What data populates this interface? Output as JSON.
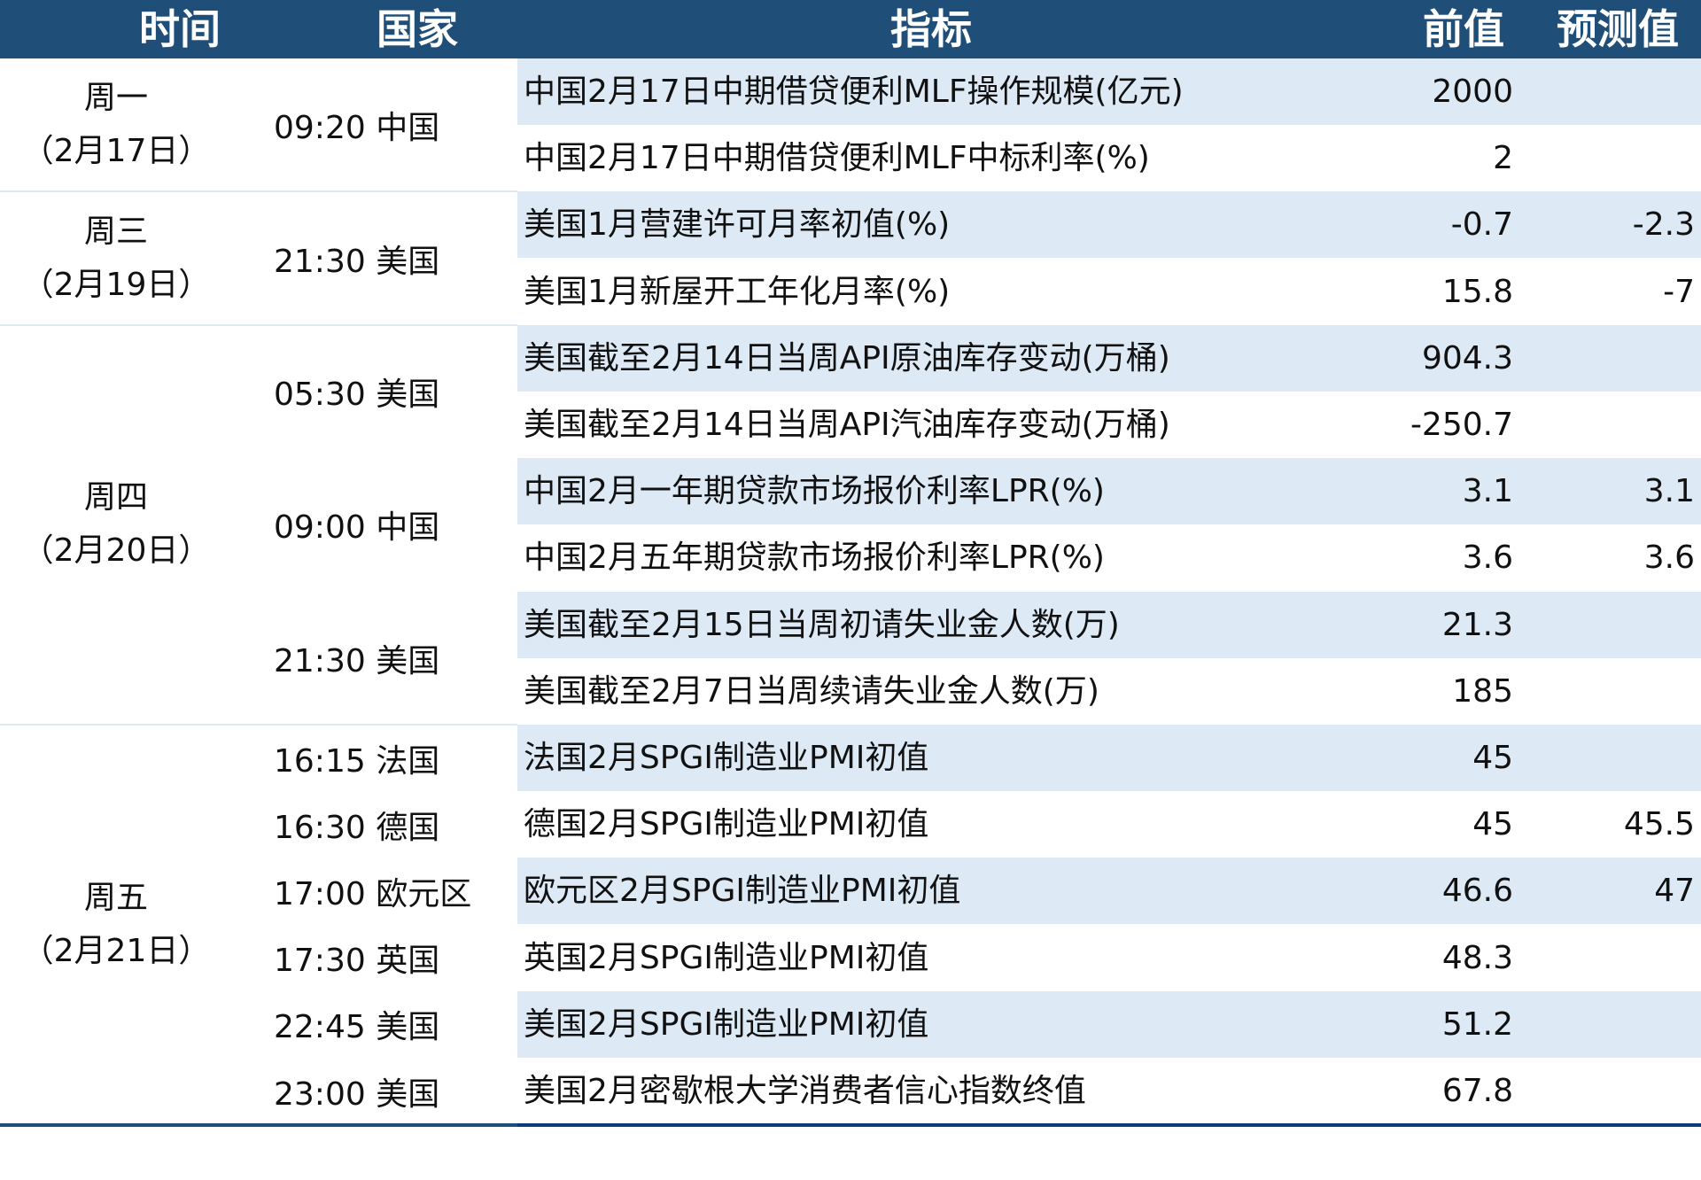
{
  "header": {
    "time": "时间",
    "country": "国家",
    "indicator": "指标",
    "previous": "前值",
    "forecast": "预测值"
  },
  "colors": {
    "header_bg": "#1f4e79",
    "row_shade": "#ddeaf6",
    "bottom_rule": "#0b3a7e"
  },
  "days": [
    {
      "day": "周一",
      "date": "（2月17日）",
      "start": 0,
      "span": 2
    },
    {
      "day": "周三",
      "date": "（2月19日）",
      "start": 2,
      "span": 2
    },
    {
      "day": "周四",
      "date": "（2月20日）",
      "start": 4,
      "span": 6
    },
    {
      "day": "周五",
      "date": "（2月21日）",
      "start": 10,
      "span": 6
    }
  ],
  "times": [
    {
      "label": "09:20 中国",
      "start": 0,
      "span": 2
    },
    {
      "label": "21:30 美国",
      "start": 2,
      "span": 2
    },
    {
      "label": "05:30 美国",
      "start": 4,
      "span": 2
    },
    {
      "label": "09:00 中国",
      "start": 6,
      "span": 2
    },
    {
      "label": "21:30 美国",
      "start": 8,
      "span": 2
    },
    {
      "label": "16:15 法国",
      "start": 10,
      "span": 1
    },
    {
      "label": "16:30 德国",
      "start": 11,
      "span": 1
    },
    {
      "label": "17:00 欧元区",
      "start": 12,
      "span": 1
    },
    {
      "label": "17:30 英国",
      "start": 13,
      "span": 1
    },
    {
      "label": "22:45 美国",
      "start": 14,
      "span": 1
    },
    {
      "label": "23:00 美国",
      "start": 15,
      "span": 1
    }
  ],
  "rows": [
    {
      "indicator": "中国2月17日中期借贷便利MLF操作规模(亿元)",
      "previous": "2000",
      "forecast": ""
    },
    {
      "indicator": "中国2月17日中期借贷便利MLF中标利率(%)",
      "previous": "2",
      "forecast": ""
    },
    {
      "indicator": "美国1月营建许可月率初值(%)",
      "previous": "-0.7",
      "forecast": "-2.3"
    },
    {
      "indicator": "美国1月新屋开工年化月率(%)",
      "previous": "15.8",
      "forecast": "-7"
    },
    {
      "indicator": "美国截至2月14日当周API原油库存变动(万桶)",
      "previous": "904.3",
      "forecast": ""
    },
    {
      "indicator": "美国截至2月14日当周API汽油库存变动(万桶)",
      "previous": "-250.7",
      "forecast": ""
    },
    {
      "indicator": "中国2月一年期贷款市场报价利率LPR(%)",
      "previous": "3.1",
      "forecast": "3.1"
    },
    {
      "indicator": "中国2月五年期贷款市场报价利率LPR(%)",
      "previous": "3.6",
      "forecast": "3.6"
    },
    {
      "indicator": "美国截至2月15日当周初请失业金人数(万)",
      "previous": "21.3",
      "forecast": ""
    },
    {
      "indicator": "美国截至2月7日当周续请失业金人数(万)",
      "previous": "185",
      "forecast": ""
    },
    {
      "indicator": "法国2月SPGI制造业PMI初值",
      "previous": "45",
      "forecast": ""
    },
    {
      "indicator": "德国2月SPGI制造业PMI初值",
      "previous": "45",
      "forecast": "45.5"
    },
    {
      "indicator": "欧元区2月SPGI制造业PMI初值",
      "previous": "46.6",
      "forecast": "47"
    },
    {
      "indicator": "英国2月SPGI制造业PMI初值",
      "previous": "48.3",
      "forecast": ""
    },
    {
      "indicator": "美国2月SPGI制造业PMI初值",
      "previous": "51.2",
      "forecast": ""
    },
    {
      "indicator": "美国2月密歇根大学消费者信心指数终值",
      "previous": "67.8",
      "forecast": ""
    }
  ]
}
